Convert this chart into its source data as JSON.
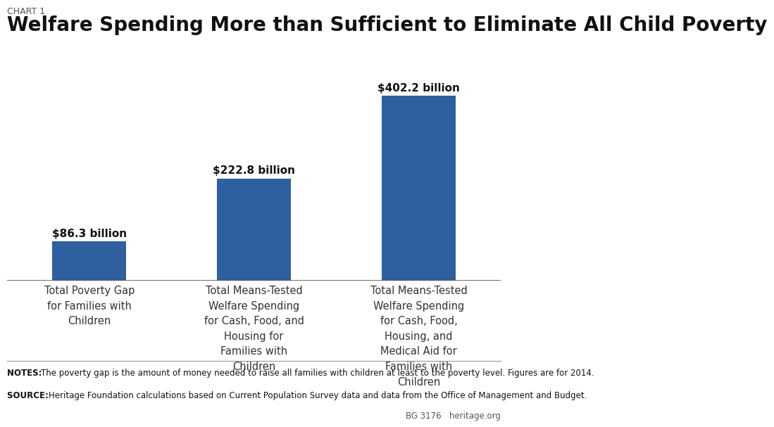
{
  "chart_label": "CHART 1",
  "title": "Welfare Spending More than Sufficient to Eliminate All Child Poverty",
  "categories": [
    "Total Poverty Gap\nfor Families with\nChildren",
    "Total Means-Tested\nWelfare Spending\nfor Cash, Food, and\nHousing for\nFamilies with\nChildren",
    "Total Means-Tested\nWelfare Spending\nfor Cash, Food,\nHousing, and\nMedical Aid for\nFamilies with\nChildren"
  ],
  "values": [
    86.3,
    222.8,
    402.2
  ],
  "bar_labels": [
    "$86.3 billion",
    "$222.8 billion",
    "$402.2 billion"
  ],
  "bar_color": "#2E5F9E",
  "background_color": "#FFFFFF",
  "ylim": [
    0,
    460
  ],
  "notes_bold": "NOTES:",
  "notes_text": "The poverty gap is the amount of money needed to raise all families with children at least to the poverty level. Figures are for 2014.",
  "source_bold": "SOURCE:",
  "source_text": "Heritage Foundation calculations based on Current Population Survey data and data from the Office of Management and Budget.",
  "footer_left": "BG 3176",
  "footer_right": "heritage.org",
  "title_fontsize": 20,
  "chart_label_fontsize": 9,
  "bar_label_fontsize": 11,
  "tick_label_fontsize": 10.5,
  "notes_fontsize": 8.5,
  "footer_fontsize": 8.5
}
